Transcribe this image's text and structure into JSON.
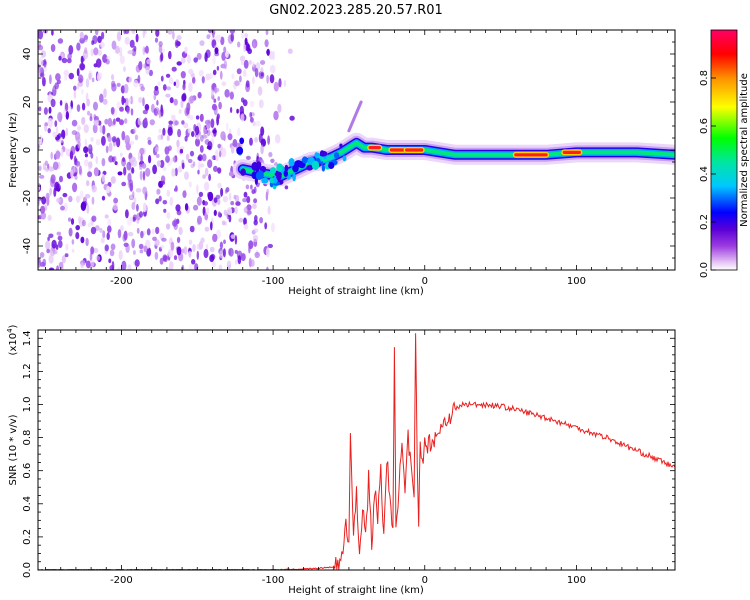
{
  "title": "GN02.2023.285.20.57.R01",
  "chart_data": [
    {
      "type": "heatmap",
      "xlabel": "Height of straight line (km)",
      "ylabel": "Frequency (Hz)",
      "xlim": [
        -255,
        165
      ],
      "ylim": [
        -50,
        50
      ],
      "x_ticks": [
        -200,
        -100,
        0,
        100
      ],
      "y_ticks": [
        -40,
        -20,
        0,
        20,
        40
      ],
      "colorbar": {
        "label": "Normalized spectral amplitude",
        "range": [
          0.0,
          1.0
        ],
        "ticks": [
          0.0,
          0.2,
          0.4,
          0.6,
          0.8
        ],
        "colors": [
          "#ffffff",
          "#e8c8f6",
          "#9b3be0",
          "#5a00d8",
          "#0000ff",
          "#00c8ff",
          "#00e6a0",
          "#00ff00",
          "#ffff00",
          "#ff9000",
          "#ff0000",
          "#ff0066"
        ]
      },
      "noise_region_x": [
        -255,
        -85
      ],
      "signal_track": [
        {
          "x": -120,
          "y": -8
        },
        {
          "x": -105,
          "y": -10
        },
        {
          "x": -95,
          "y": -11
        },
        {
          "x": -85,
          "y": -8
        },
        {
          "x": -75,
          "y": -5
        },
        {
          "x": -65,
          "y": -4
        },
        {
          "x": -55,
          "y": -1
        },
        {
          "x": -45,
          "y": 3
        },
        {
          "x": -40,
          "y": 1
        },
        {
          "x": -35,
          "y": 1
        },
        {
          "x": -25,
          "y": 0
        },
        {
          "x": -10,
          "y": 0
        },
        {
          "x": 0,
          "y": 0
        },
        {
          "x": 20,
          "y": -2
        },
        {
          "x": 60,
          "y": -2
        },
        {
          "x": 80,
          "y": -2
        },
        {
          "x": 100,
          "y": -1
        },
        {
          "x": 140,
          "y": -1
        },
        {
          "x": 165,
          "y": -2
        }
      ],
      "peak_segments": [
        {
          "x": [
            -36,
            -30
          ],
          "y": 1
        },
        {
          "x": [
            -22,
            -14
          ],
          "y": 0
        },
        {
          "x": [
            -12,
            -2
          ],
          "y": 0
        },
        {
          "x": [
            60,
            80
          ],
          "y": -2
        },
        {
          "x": [
            92,
            102
          ],
          "y": -1
        }
      ],
      "side_feature": {
        "x": [
          -50,
          -42
        ],
        "y": [
          8,
          20
        ]
      }
    },
    {
      "type": "line",
      "xlabel": "Height of straight line (km)",
      "ylabel": "SNR (10 * v/v)",
      "y_scale_label": "(x10",
      "y_scale_exp": "4",
      "xlim": [
        -255,
        165
      ],
      "ylim": [
        0.0,
        1.45
      ],
      "x_ticks": [
        -200,
        -100,
        0,
        100
      ],
      "y_ticks": [
        "0.0",
        "0.2",
        "0.4",
        "0.6",
        "0.8",
        "1.0",
        "1.2",
        "1.4"
      ],
      "series": [
        {
          "color": "#e8211f",
          "x": [
            -255,
            -200,
            -150,
            -100,
            -70,
            -60,
            -56,
            -54,
            -52,
            -50,
            -49,
            -47,
            -45,
            -43,
            -41,
            -39,
            -37,
            -35,
            -33,
            -31,
            -29,
            -27,
            -25,
            -23,
            -21,
            -20,
            -19,
            -17,
            -15,
            -13,
            -11,
            -9,
            -7,
            -6,
            -5,
            -4,
            -3,
            -1,
            0,
            5,
            10,
            15,
            20,
            25,
            30,
            40,
            50,
            60,
            80,
            100,
            120,
            140,
            165
          ],
          "y": [
            0.0,
            0.0,
            0.0,
            0.0,
            0.01,
            0.02,
            0.05,
            0.1,
            0.3,
            0.15,
            0.88,
            0.2,
            0.45,
            0.1,
            0.4,
            0.2,
            0.55,
            0.15,
            0.5,
            0.3,
            0.6,
            0.2,
            0.7,
            0.4,
            0.2,
            1.4,
            0.3,
            0.5,
            0.75,
            0.45,
            0.8,
            0.6,
            0.4,
            1.45,
            0.6,
            0.3,
            0.75,
            0.7,
            0.75,
            0.78,
            0.85,
            0.92,
            0.97,
            1.0,
            1.0,
            1.0,
            0.99,
            0.97,
            0.92,
            0.86,
            0.8,
            0.72,
            0.62
          ]
        }
      ]
    }
  ]
}
